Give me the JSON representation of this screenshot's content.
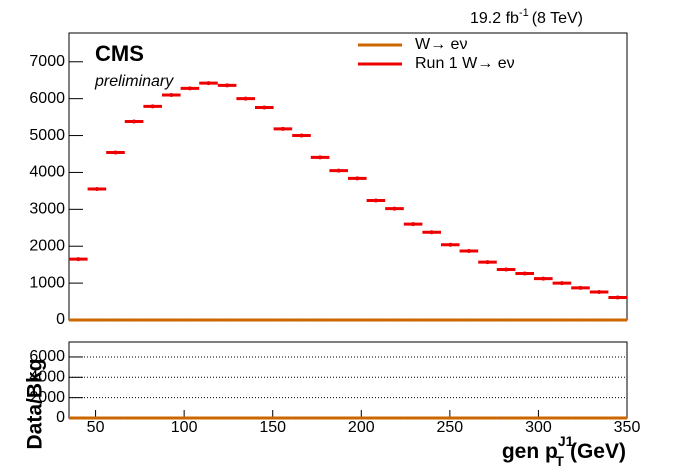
{
  "chart_data": [
    {
      "type": "histogram",
      "lumi": "19.2 fb",
      "lumi_exp": "-1",
      "lumi_energy": "(8 TeV)",
      "experiment": "CMS",
      "status": "preliminary",
      "bins": [
        35,
        45.5,
        56,
        66.5,
        77,
        87.5,
        98,
        108.5,
        119,
        129.5,
        140,
        150.5,
        161,
        171.5,
        182,
        192.5,
        203,
        213.5,
        224,
        234.5,
        245,
        255.5,
        266,
        276.5,
        287,
        297.5,
        308,
        318.5,
        329,
        339.5,
        350
      ],
      "series": [
        {
          "name": "W→ eν",
          "color": "#cc6600",
          "marker": "line",
          "values": [
            0,
            0,
            0,
            0,
            0,
            0,
            0,
            0,
            0,
            0,
            0,
            0,
            0,
            0,
            0,
            0,
            0,
            0,
            0,
            0,
            0,
            0,
            0,
            0,
            0,
            0,
            0,
            0,
            0,
            0
          ]
        },
        {
          "name": "Run 1 W→ eν",
          "color": "#ee0000",
          "marker": "errorbar",
          "values": [
            1650,
            3550,
            4540,
            5380,
            5790,
            6100,
            6280,
            6420,
            6360,
            6000,
            5760,
            5180,
            5000,
            4410,
            4050,
            3840,
            3240,
            3020,
            2600,
            2380,
            2040,
            1870,
            1570,
            1370,
            1260,
            1120,
            1000,
            870,
            760,
            610
          ]
        }
      ],
      "xlim": [
        35,
        350
      ],
      "ylim": [
        0,
        7780
      ],
      "yticks": [
        0,
        1000,
        2000,
        3000,
        4000,
        5000,
        6000,
        7000
      ]
    },
    {
      "type": "histogram",
      "ylabel": "Data/Bkg",
      "xlabel": "gen p",
      "xlabel_sub": "T",
      "xlabel_sup": "J1",
      "xlabel_unit": "(GeV)",
      "bins": [
        35,
        45.5,
        56,
        66.5,
        77,
        87.5,
        98,
        108.5,
        119,
        129.5,
        140,
        150.5,
        161,
        171.5,
        182,
        192.5,
        203,
        213.5,
        224,
        234.5,
        245,
        255.5,
        266,
        276.5,
        287,
        297.5,
        308,
        318.5,
        329,
        339.5,
        350
      ],
      "series": [
        {
          "color": "#cc6600",
          "marker": "line",
          "values": [
            0,
            0,
            0,
            0,
            0,
            0,
            0,
            0,
            0,
            0,
            0,
            0,
            0,
            0,
            0,
            0,
            0,
            0,
            0,
            0,
            0,
            0,
            0,
            0,
            0,
            0,
            0,
            0,
            0,
            0
          ]
        }
      ],
      "xlim": [
        35,
        350
      ],
      "xticks": [
        50,
        100,
        150,
        200,
        250,
        300,
        350
      ],
      "ylim": [
        0,
        7470
      ],
      "yticks": [
        0,
        2000,
        4000,
        6000
      ],
      "grid": true
    }
  ]
}
